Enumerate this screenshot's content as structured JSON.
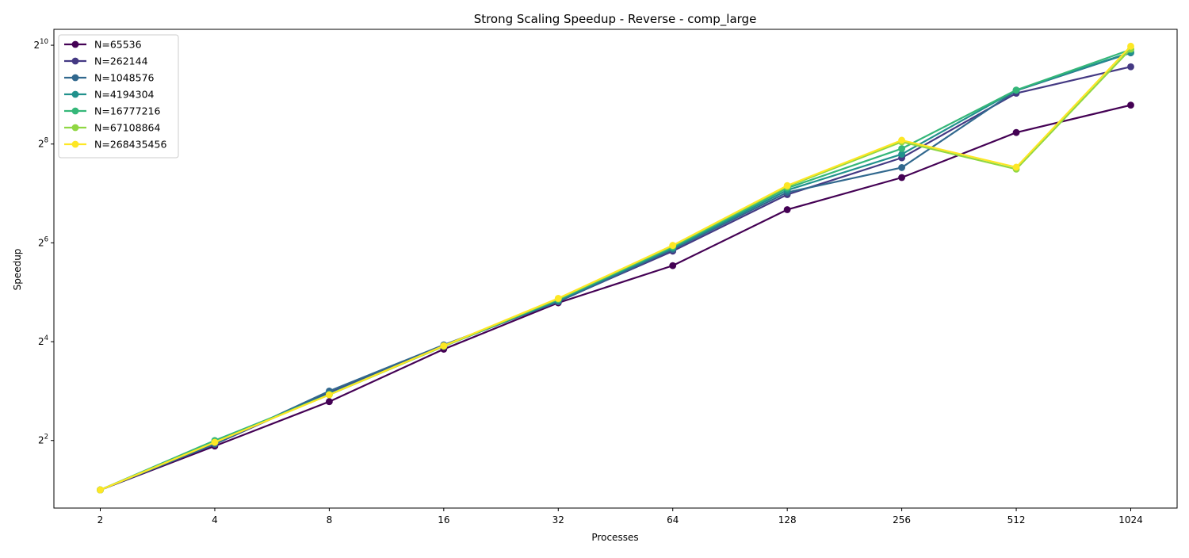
{
  "chart_data": {
    "type": "line",
    "title": "Strong Scaling Speedup - Reverse - comp_large",
    "xlabel": "Processes",
    "ylabel": "Speedup",
    "x_scale": "log2",
    "y_scale": "log2",
    "x": [
      2,
      4,
      8,
      16,
      32,
      64,
      128,
      256,
      512,
      1024
    ],
    "x_tick_labels": [
      "2",
      "4",
      "8",
      "16",
      "32",
      "64",
      "128",
      "256",
      "512",
      "1024"
    ],
    "y_ticks": [
      {
        "base": "2",
        "exp": "2",
        "value": 4
      },
      {
        "base": "2",
        "exp": "4",
        "value": 16
      },
      {
        "base": "2",
        "exp": "6",
        "value": 64
      },
      {
        "base": "2",
        "exp": "8",
        "value": 256
      },
      {
        "base": "2",
        "exp": "10",
        "value": 1024
      }
    ],
    "ylim": [
      1.55,
      1280
    ],
    "grid": false,
    "legend_position": "upper-left",
    "series": [
      {
        "name": "N=65536",
        "color": "#440154",
        "values": [
          2.0,
          3.7,
          6.9,
          14.4,
          27.6,
          46.5,
          102,
          160,
          301,
          442
        ]
      },
      {
        "name": "N=262144",
        "color": "#443983",
        "values": [
          2.0,
          3.8,
          7.8,
          15.1,
          28.2,
          57.0,
          126,
          211,
          522,
          757
        ]
      },
      {
        "name": "N=1048576",
        "color": "#31688e",
        "values": [
          2.0,
          3.8,
          8.0,
          15.3,
          28.0,
          58.4,
          130,
          184,
          542,
          920
        ]
      },
      {
        "name": "N=4194304",
        "color": "#21918c",
        "values": [
          2.0,
          3.9,
          7.7,
          15.0,
          28.6,
          59.5,
          134,
          222,
          545,
          927
        ]
      },
      {
        "name": "N=16777216",
        "color": "#35b779",
        "values": [
          2.0,
          4.0,
          7.6,
          15.0,
          28.9,
          60.5,
          138,
          240,
          546,
          963
        ]
      },
      {
        "name": "N=67108864",
        "color": "#90d743",
        "values": [
          2.0,
          3.9,
          7.6,
          15.0,
          29.2,
          61.4,
          141,
          264,
          180,
          972
        ]
      },
      {
        "name": "N=268435456",
        "color": "#fde725",
        "values": [
          2.0,
          3.9,
          7.6,
          15.1,
          29.4,
          61.8,
          143,
          270,
          185,
          1010
        ]
      }
    ]
  }
}
